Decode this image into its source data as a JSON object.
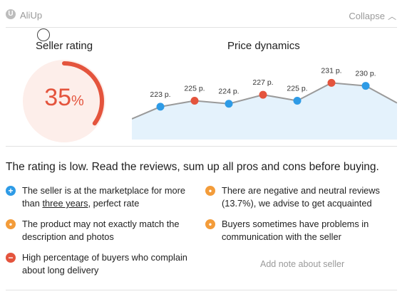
{
  "header": {
    "brand": "AliUp",
    "collapse_label": "Collapse",
    "logo_letter": "U"
  },
  "seller_rating": {
    "title": "Seller rating",
    "value": "35",
    "suffix": "%",
    "fraction": 0.35,
    "color": "#e4543d",
    "bg_color": "#fdeeea"
  },
  "price_dynamics": {
    "title": "Price dynamics"
  },
  "chart_data": {
    "type": "line",
    "points": [
      {
        "label": "223 p.",
        "value": 223,
        "color": "#2e9be6"
      },
      {
        "label": "225 p.",
        "value": 225,
        "color": "#e4543d"
      },
      {
        "label": "224 p.",
        "value": 224,
        "color": "#2e9be6"
      },
      {
        "label": "227 p.",
        "value": 227,
        "color": "#e4543d"
      },
      {
        "label": "225 p.",
        "value": 225,
        "color": "#2e9be6"
      },
      {
        "label": "231 p.",
        "value": 231,
        "color": "#e4543d"
      },
      {
        "label": "230 p.",
        "value": 230,
        "color": "#2e9be6"
      }
    ],
    "ylim": [
      212,
      233
    ],
    "line_color": "#9a9a9a",
    "fill_color": "#e4f2fc"
  },
  "verdict": "The rating is low. Read the reviews, sum up all pros and cons before buying.",
  "notes": {
    "n1": {
      "icon": "+",
      "color": "#2e9be6",
      "before": "The seller is at the marketplace for more than ",
      "link": "three years",
      "after": ", perfect rate"
    },
    "n2": {
      "icon": "•",
      "color": "#f39c3a",
      "text": "There are negative and neutral reviews (13.7%), we advise to get acquainted"
    },
    "n3": {
      "icon": "•",
      "color": "#f39c3a",
      "text": "The product may not exactly match the description and photos"
    },
    "n4": {
      "icon": "•",
      "color": "#f39c3a",
      "text": "Buyers sometimes have problems in communication with the seller"
    },
    "n5": {
      "icon": "−",
      "color": "#e4543d",
      "text": "High percentage of buyers who complain about long delivery"
    }
  },
  "add_note": "Add note about seller"
}
